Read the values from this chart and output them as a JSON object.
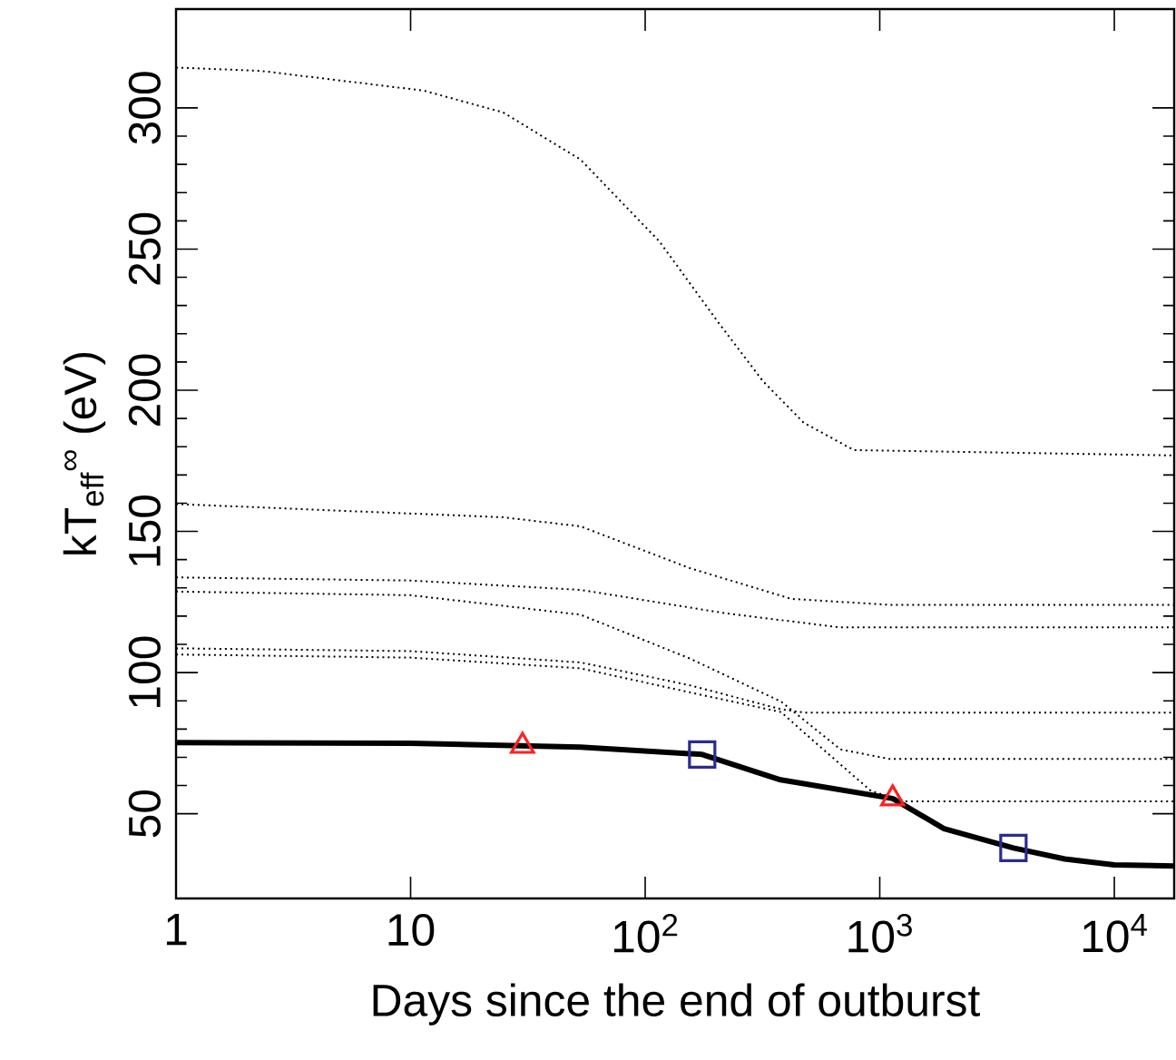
{
  "chart_data": {
    "type": "line",
    "xlabel": "Days since the end of outburst",
    "ylabel": "kT$_{eff}$$^{∞}$ (eV)",
    "log": "x",
    "xlim": [
      1,
      18000
    ],
    "ylim": [
      20,
      335
    ],
    "xticks": [
      1,
      10,
      {
        "value": 100,
        "label": "10$^{2}$"
      },
      {
        "value": 1000,
        "label": "10$^{3}$"
      },
      {
        "value": 10000,
        "label": "10$^{4}$"
      }
    ],
    "yticks": [
      50,
      100,
      150,
      200,
      250,
      300
    ],
    "series": [
      {
        "color": "#000000",
        "line_style": "dotted",
        "x": [
          1,
          2.3,
          11.4,
          24.8,
          53,
          115,
          203,
          317,
          474,
          776,
          18000
        ],
        "values": [
          314.3,
          313.1,
          306.1,
          298.4,
          281.7,
          252.7,
          224.5,
          203.3,
          188.5,
          178.8,
          176.9
        ]
      },
      {
        "color": "#000000",
        "line_style": "dotted",
        "x": [
          1,
          24.8,
          53,
          155,
          420,
          1100,
          18000
        ],
        "values": [
          159.7,
          155.0,
          151.8,
          137.0,
          126.1,
          124.0,
          124.0
        ]
      },
      {
        "color": "#000000",
        "line_style": "dotted",
        "x": [
          1,
          10,
          53,
          220,
          680,
          1100,
          18000
        ],
        "values": [
          133.7,
          132.6,
          129.3,
          121.0,
          116.0,
          116.0,
          116.0
        ]
      },
      {
        "color": "#000000",
        "line_style": "dotted",
        "x": [
          1,
          10,
          53,
          155,
          380,
          680,
          1100,
          18000
        ],
        "values": [
          128.7,
          127.4,
          120.5,
          105.0,
          89.7,
          72.8,
          69.4,
          69.4
        ]
      },
      {
        "color": "#000000",
        "line_style": "dotted",
        "x": [
          1,
          10,
          53,
          155,
          380,
          480,
          18000
        ],
        "values": [
          108.6,
          107.6,
          103.6,
          95.5,
          87.0,
          85.8,
          85.8
        ]
      },
      {
        "color": "#000000",
        "line_style": "dotted",
        "x": [
          1,
          10,
          53,
          155,
          380,
          540,
          920,
          1300,
          18000
        ],
        "values": [
          106.4,
          105.3,
          101.5,
          93.0,
          86.0,
          74.7,
          58.0,
          54.4,
          54.4
        ]
      },
      {
        "color": "#000000",
        "line_style": "solid",
        "x": [
          1,
          10,
          53,
          175,
          378,
          1135,
          1880,
          3715,
          6150,
          10000,
          18000
        ],
        "values": [
          75.2,
          75.0,
          73.6,
          71.0,
          62.0,
          55.4,
          44.7,
          37.9,
          34.0,
          31.9,
          31.5
        ]
      },
      {
        "type": "scatter",
        "marker": "triangle",
        "color": "#ff2020",
        "x": [
          30,
          1135
        ],
        "values": [
          74.0,
          55.4
        ]
      },
      {
        "type": "scatter",
        "marker": "square",
        "color": "#2b2b8f",
        "x": [
          175,
          3715
        ],
        "values": [
          71.0,
          37.9
        ]
      }
    ]
  }
}
